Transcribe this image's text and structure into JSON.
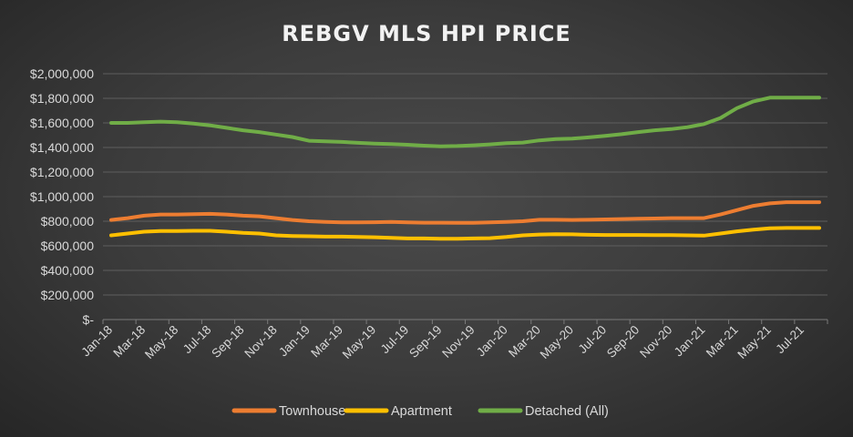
{
  "chart_data": {
    "type": "line",
    "title": "REBGV MLS HPI PRICE",
    "xlabel": "",
    "ylabel": "",
    "ylim": [
      0,
      2000000
    ],
    "y_ticks": [
      0,
      200000,
      400000,
      600000,
      800000,
      1000000,
      1200000,
      1400000,
      1600000,
      1800000,
      2000000
    ],
    "y_tick_labels": [
      "$-",
      "$200,000",
      "$400,000",
      "$600,000",
      "$800,000",
      "$1,000,000",
      "$1,200,000",
      "$1,400,000",
      "$1,600,000",
      "$1,800,000",
      "$2,000,000"
    ],
    "x": [
      "Jan-18",
      "Feb-18",
      "Mar-18",
      "Apr-18",
      "May-18",
      "Jun-18",
      "Jul-18",
      "Aug-18",
      "Sep-18",
      "Oct-18",
      "Nov-18",
      "Dec-18",
      "Jan-19",
      "Feb-19",
      "Mar-19",
      "Apr-19",
      "May-19",
      "Jun-19",
      "Jul-19",
      "Aug-19",
      "Sep-19",
      "Oct-19",
      "Nov-19",
      "Dec-19",
      "Jan-20",
      "Feb-20",
      "Mar-20",
      "Apr-20",
      "May-20",
      "Jun-20",
      "Jul-20",
      "Aug-20",
      "Sep-20",
      "Oct-20",
      "Nov-20",
      "Dec-20",
      "Jan-21",
      "Feb-21",
      "Mar-21",
      "Apr-21",
      "May-21",
      "Jun-21",
      "Jul-21",
      "Aug-21"
    ],
    "x_tick_labels": [
      "Jan-18",
      "Mar-18",
      "May-18",
      "Jul-18",
      "Sep-18",
      "Nov-18",
      "Jan-19",
      "Mar-19",
      "May-19",
      "Jul-19",
      "Sep-19",
      "Nov-19",
      "Jan-20",
      "Mar-20",
      "May-20",
      "Jul-20",
      "Sep-20",
      "Nov-20",
      "Jan-21",
      "Mar-21",
      "May-21",
      "Jul-21"
    ],
    "grid": true,
    "legend_position": "bottom",
    "series": [
      {
        "name": "Townhouse",
        "color": "#ED7D31",
        "values": [
          810000,
          825000,
          845000,
          855000,
          855000,
          858000,
          860000,
          855000,
          845000,
          840000,
          825000,
          810000,
          800000,
          795000,
          790000,
          790000,
          792000,
          795000,
          790000,
          788000,
          788000,
          787000,
          787000,
          790000,
          795000,
          800000,
          812000,
          812000,
          810000,
          812000,
          815000,
          818000,
          820000,
          822000,
          825000,
          825000,
          825000,
          855000,
          890000,
          925000,
          945000,
          955000,
          955000,
          955000
        ]
      },
      {
        "name": "Apartment",
        "color": "#FFC000",
        "values": [
          685000,
          700000,
          715000,
          720000,
          720000,
          722000,
          722000,
          715000,
          705000,
          700000,
          685000,
          680000,
          678000,
          675000,
          675000,
          672000,
          670000,
          665000,
          660000,
          660000,
          658000,
          658000,
          660000,
          662000,
          672000,
          685000,
          692000,
          695000,
          693000,
          690000,
          688000,
          688000,
          688000,
          687000,
          687000,
          685000,
          683000,
          700000,
          718000,
          732000,
          742000,
          745000,
          745000,
          745000
        ]
      },
      {
        "name": "Detached (All)",
        "color": "#70AD47",
        "values": [
          1600000,
          1600000,
          1605000,
          1610000,
          1605000,
          1595000,
          1580000,
          1560000,
          1540000,
          1525000,
          1505000,
          1485000,
          1455000,
          1450000,
          1445000,
          1438000,
          1432000,
          1428000,
          1422000,
          1415000,
          1410000,
          1412000,
          1418000,
          1425000,
          1435000,
          1440000,
          1458000,
          1468000,
          1472000,
          1482000,
          1495000,
          1508000,
          1525000,
          1540000,
          1550000,
          1565000,
          1590000,
          1640000,
          1720000,
          1775000,
          1805000,
          1805000,
          1805000,
          1805000
        ]
      }
    ]
  }
}
